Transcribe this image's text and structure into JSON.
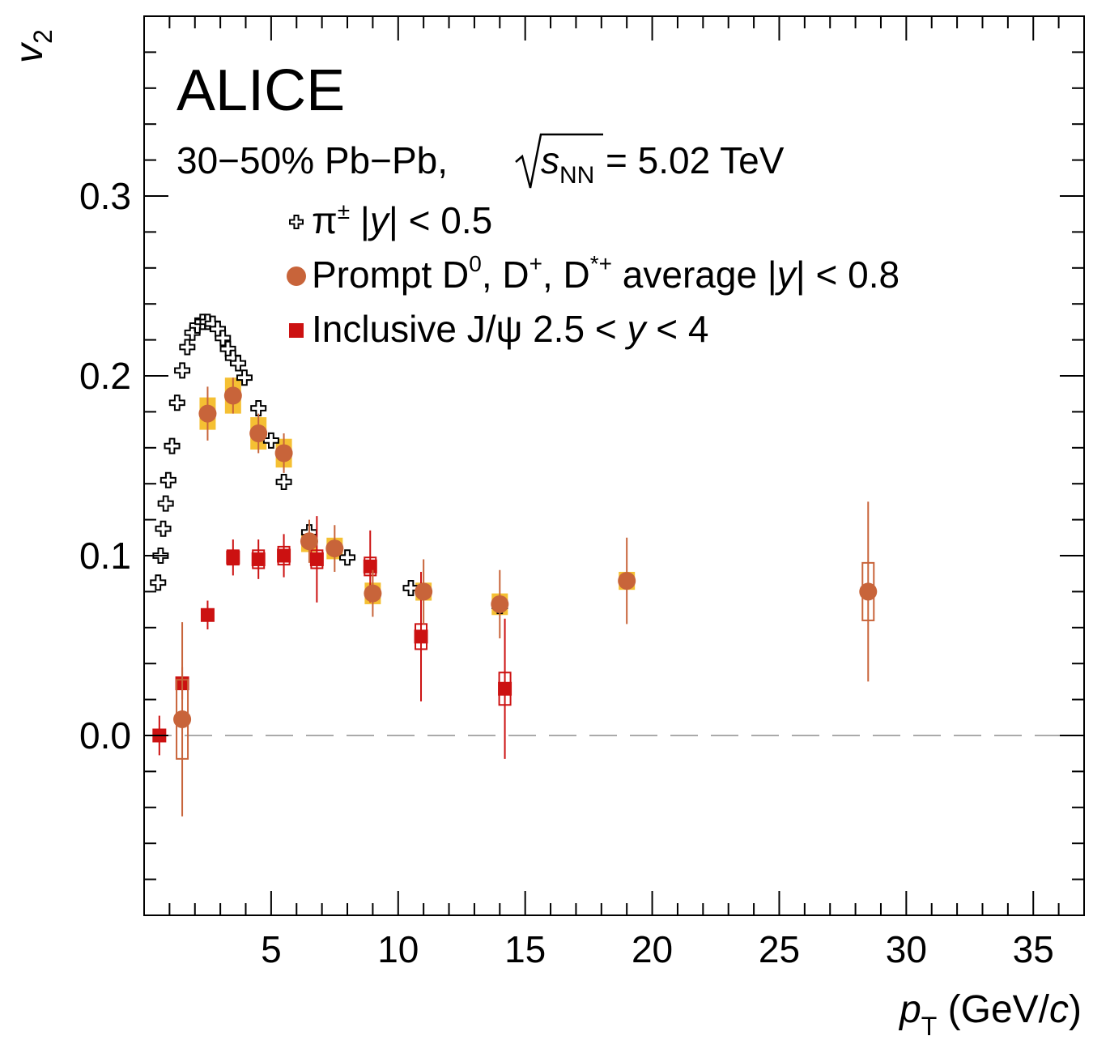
{
  "chart_data": {
    "type": "scatter",
    "experiment": "ALICE",
    "system": {
      "prefix": "30−50% Pb−Pb, ",
      "sqrt_s_var": "s",
      "sqrt_s_sub": "NN",
      "suffix": " = 5.02 TeV"
    },
    "xlabel": {
      "var": "p",
      "sub": "T",
      "unit_pre": " (GeV/",
      "unit_var": "c",
      "unit_post": ")"
    },
    "ylabel": {
      "var": "v",
      "sub": "2"
    },
    "xlim": [
      0,
      37
    ],
    "ylim": [
      -0.1,
      0.4
    ],
    "x_ticks": [
      5,
      10,
      15,
      20,
      25,
      30,
      35
    ],
    "x_tick_labels": [
      "5",
      "10",
      "15",
      "20",
      "25",
      "30",
      "35"
    ],
    "y_ticks": [
      0.0,
      0.1,
      0.2,
      0.3
    ],
    "y_tick_labels": [
      "0.0",
      "0.1",
      "0.2",
      "0.3"
    ],
    "zero_line": true,
    "legend_position": "top-left",
    "colors": {
      "pion": "#000000",
      "dmeson": "#c8643a",
      "dmeson_syst": "#f5c033",
      "jpsi": "#cc1111",
      "zero_line": "#aaaaaa"
    },
    "series": [
      {
        "key": "pion",
        "legend": {
          "symbol": "π",
          "sup": "±",
          "text_pre": " |",
          "text_var": "y",
          "text_post": "| < 0.5"
        },
        "marker": "open-cross",
        "points": [
          {
            "x": 0.55,
            "y": 0.085
          },
          {
            "x": 0.65,
            "y": 0.1
          },
          {
            "x": 0.75,
            "y": 0.115
          },
          {
            "x": 0.85,
            "y": 0.129
          },
          {
            "x": 0.95,
            "y": 0.142
          },
          {
            "x": 1.1,
            "y": 0.161
          },
          {
            "x": 1.3,
            "y": 0.185
          },
          {
            "x": 1.5,
            "y": 0.203
          },
          {
            "x": 1.7,
            "y": 0.216
          },
          {
            "x": 1.9,
            "y": 0.224
          },
          {
            "x": 2.1,
            "y": 0.228
          },
          {
            "x": 2.3,
            "y": 0.23
          },
          {
            "x": 2.5,
            "y": 0.23
          },
          {
            "x": 2.7,
            "y": 0.229
          },
          {
            "x": 2.9,
            "y": 0.226
          },
          {
            "x": 3.1,
            "y": 0.221
          },
          {
            "x": 3.3,
            "y": 0.215
          },
          {
            "x": 3.5,
            "y": 0.21
          },
          {
            "x": 3.7,
            "y": 0.207
          },
          {
            "x": 3.95,
            "y": 0.199
          },
          {
            "x": 4.5,
            "y": 0.182
          },
          {
            "x": 5.0,
            "y": 0.164
          },
          {
            "x": 5.5,
            "y": 0.141
          },
          {
            "x": 6.5,
            "y": 0.113
          },
          {
            "x": 8.0,
            "y": 0.099
          },
          {
            "x": 10.5,
            "y": 0.082
          },
          {
            "x": 14.0,
            "y": 0.072
          }
        ]
      },
      {
        "key": "dmeson",
        "legend": {
          "text": "Prompt D",
          "sup1": "0",
          "text2": ", D",
          "sup2": "+",
          "text3": ", D",
          "sup3": "*+",
          "text4": " average |",
          "text_var": "y",
          "text_post": "| < 0.8"
        },
        "marker": "filled-circle",
        "points": [
          {
            "x": 1.5,
            "y": 0.009,
            "err": 0.054,
            "syst_box": 0.022
          },
          {
            "x": 2.5,
            "y": 0.179,
            "err": 0.015,
            "syst_fill": 0.009
          },
          {
            "x": 3.5,
            "y": 0.189,
            "err": 0.01,
            "syst_fill": 0.01
          },
          {
            "x": 4.5,
            "y": 0.168,
            "err": 0.011,
            "syst_fill": 0.009
          },
          {
            "x": 5.5,
            "y": 0.157,
            "err": 0.011,
            "syst_fill": 0.008
          },
          {
            "x": 6.5,
            "y": 0.108,
            "err": 0.012,
            "syst_fill": 0.006
          },
          {
            "x": 7.5,
            "y": 0.104,
            "err": 0.013,
            "syst_fill": 0.006
          },
          {
            "x": 9.0,
            "y": 0.079,
            "err": 0.013,
            "syst_fill": 0.006
          },
          {
            "x": 11.0,
            "y": 0.08,
            "err": 0.018,
            "syst_fill": 0.005
          },
          {
            "x": 14.0,
            "y": 0.073,
            "err": 0.019,
            "syst_fill": 0.006
          },
          {
            "x": 19.0,
            "y": 0.086,
            "err": 0.024,
            "syst_fill": 0.005
          },
          {
            "x": 28.5,
            "y": 0.08,
            "err": 0.05,
            "syst_box": 0.016
          }
        ]
      },
      {
        "key": "jpsi",
        "legend": {
          "text": "Inclusive J/ψ 2.5 < ",
          "text_var": "y",
          "text_post": " < 4"
        },
        "marker": "filled-square",
        "points": [
          {
            "x": 0.6,
            "y": 0.0,
            "err": 0.011
          },
          {
            "x": 1.5,
            "y": 0.029,
            "err": 0.009
          },
          {
            "x": 2.5,
            "y": 0.067,
            "err": 0.008
          },
          {
            "x": 3.5,
            "y": 0.099,
            "err": 0.01,
            "syst_box": 0.004
          },
          {
            "x": 4.5,
            "y": 0.098,
            "err": 0.011,
            "syst_box": 0.005
          },
          {
            "x": 5.5,
            "y": 0.1,
            "err": 0.012,
            "syst_box": 0.005
          },
          {
            "x": 6.8,
            "y": 0.098,
            "err": 0.024,
            "syst_box": 0.005
          },
          {
            "x": 8.9,
            "y": 0.094,
            "err": 0.02,
            "syst_box": 0.005
          },
          {
            "x": 10.9,
            "y": 0.055,
            "err": 0.036,
            "syst_box": 0.007
          },
          {
            "x": 14.2,
            "y": 0.026,
            "err": 0.039,
            "syst_box": 0.009
          }
        ]
      }
    ]
  }
}
